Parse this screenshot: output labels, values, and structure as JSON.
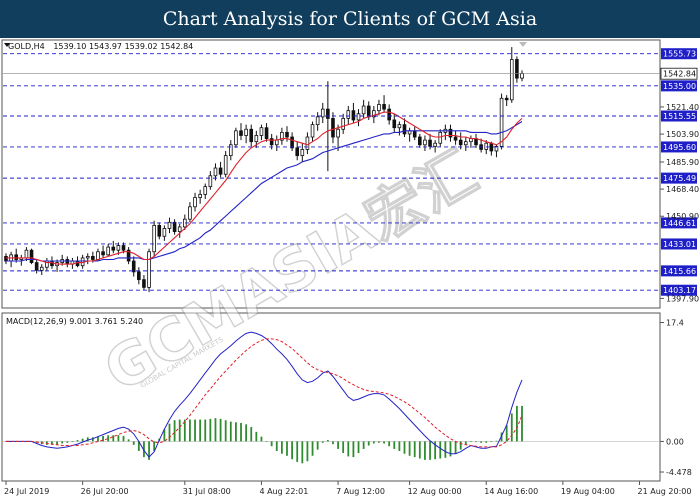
{
  "title": "Chart Analysis for Clients of GCM Asia",
  "watermark": {
    "main": "GCMASIA宏汇",
    "sub": "GLOBAL CAPITAL MARKETS"
  },
  "colors": {
    "title_bg": "#123e5e",
    "candle_bull": "#111111",
    "candle_bear": "#111111",
    "ma_fast": "#e0202a",
    "ma_slow": "#2323c8",
    "level_line": "#1f1fc8",
    "level_tag": "#1f1fc8",
    "macd_line": "#2323c8",
    "signal_line": "#e0202a",
    "histogram": "#2e8b2e"
  },
  "chart_data": [
    {
      "type": "line",
      "panel": "price",
      "symbol_label": "GOLD,H4",
      "ohlc_label": "1539.10 1543.97 1539.02 1542.84",
      "ylim": [
        1393,
        1562
      ],
      "y_tick_labels": [
        "1521.40",
        "1503.90",
        "1485.90",
        "1468.40",
        "1450.90",
        "1397.90"
      ],
      "y_ticks": [
        1521.4,
        1503.9,
        1485.9,
        1468.4,
        1450.9,
        1397.9
      ],
      "current_price": 1542.84,
      "current_price_label": "1542.84",
      "levels": [
        1555.73,
        1535.0,
        1515.55,
        1495.6,
        1475.49,
        1446.61,
        1433.01,
        1415.66,
        1403.17
      ],
      "level_labels": [
        "1555.73",
        "1535.00",
        "1515.55",
        "1495.60",
        "1475.49",
        "1446.61",
        "1433.01",
        "1415.66",
        "1403.17"
      ],
      "x_labels": [
        "24 Jul 2019",
        "26 Jul 20:00",
        "31 Jul 08:00",
        "4 Aug 22:01",
        "7 Aug 12:00",
        "12 Aug 00:00",
        "14 Aug 16:00",
        "19 Aug 04:00",
        "21 Aug 20:00"
      ],
      "x_label_positions": [
        0,
        15,
        35,
        50,
        65,
        79,
        94,
        109,
        124
      ],
      "candles": [
        [
          1425,
          1427,
          1420,
          1422
        ],
        [
          1422,
          1428,
          1418,
          1426
        ],
        [
          1426,
          1430,
          1421,
          1423
        ],
        [
          1423,
          1426,
          1419,
          1424
        ],
        [
          1424,
          1431,
          1422,
          1429
        ],
        [
          1429,
          1430,
          1420,
          1421
        ],
        [
          1421,
          1423,
          1414,
          1416
        ],
        [
          1416,
          1420,
          1413,
          1418
        ],
        [
          1418,
          1424,
          1416,
          1422
        ],
        [
          1422,
          1425,
          1417,
          1419
        ],
        [
          1419,
          1423,
          1415,
          1421
        ],
        [
          1421,
          1426,
          1419,
          1423
        ],
        [
          1423,
          1425,
          1418,
          1420
        ],
        [
          1420,
          1424,
          1417,
          1422
        ],
        [
          1422,
          1425,
          1418,
          1419
        ],
        [
          1419,
          1426,
          1417,
          1424
        ],
        [
          1424,
          1427,
          1420,
          1425
        ],
        [
          1425,
          1428,
          1421,
          1423
        ],
        [
          1423,
          1430,
          1422,
          1428
        ],
        [
          1428,
          1432,
          1424,
          1426
        ],
        [
          1426,
          1433,
          1425,
          1431
        ],
        [
          1431,
          1435,
          1427,
          1429
        ],
        [
          1429,
          1434,
          1426,
          1432
        ],
        [
          1432,
          1434,
          1427,
          1429
        ],
        [
          1429,
          1431,
          1420,
          1422
        ],
        [
          1422,
          1425,
          1412,
          1415
        ],
        [
          1415,
          1418,
          1407,
          1410
        ],
        [
          1410,
          1413,
          1403,
          1405
        ],
        [
          1405,
          1430,
          1402,
          1428
        ],
        [
          1428,
          1448,
          1425,
          1445
        ],
        [
          1445,
          1447,
          1436,
          1438
        ],
        [
          1438,
          1445,
          1435,
          1443
        ],
        [
          1443,
          1450,
          1440,
          1447
        ],
        [
          1447,
          1449,
          1439,
          1441
        ],
        [
          1441,
          1446,
          1437,
          1444
        ],
        [
          1444,
          1452,
          1442,
          1449
        ],
        [
          1449,
          1460,
          1447,
          1457
        ],
        [
          1457,
          1466,
          1454,
          1463
        ],
        [
          1463,
          1468,
          1459,
          1465
        ],
        [
          1465,
          1472,
          1462,
          1470
        ],
        [
          1470,
          1480,
          1468,
          1477
        ],
        [
          1477,
          1485,
          1474,
          1482
        ],
        [
          1482,
          1486,
          1476,
          1478
        ],
        [
          1478,
          1493,
          1476,
          1490
        ],
        [
          1490,
          1500,
          1487,
          1497
        ],
        [
          1497,
          1508,
          1495,
          1506
        ],
        [
          1506,
          1511,
          1500,
          1503
        ],
        [
          1503,
          1510,
          1498,
          1507
        ],
        [
          1507,
          1510,
          1496,
          1499
        ],
        [
          1499,
          1506,
          1495,
          1503
        ],
        [
          1503,
          1510,
          1500,
          1508
        ],
        [
          1508,
          1511,
          1499,
          1501
        ],
        [
          1501,
          1504,
          1494,
          1497
        ],
        [
          1497,
          1503,
          1493,
          1500
        ],
        [
          1500,
          1508,
          1497,
          1505
        ],
        [
          1505,
          1509,
          1499,
          1502
        ],
        [
          1502,
          1505,
          1493,
          1495
        ],
        [
          1495,
          1499,
          1487,
          1490
        ],
        [
          1490,
          1498,
          1486,
          1494
        ],
        [
          1494,
          1505,
          1491,
          1502
        ],
        [
          1502,
          1512,
          1499,
          1510
        ],
        [
          1510,
          1518,
          1506,
          1515
        ],
        [
          1515,
          1524,
          1511,
          1520
        ],
        [
          1520,
          1538,
          1480,
          1514
        ],
        [
          1514,
          1518,
          1498,
          1502
        ],
        [
          1502,
          1510,
          1493,
          1507
        ],
        [
          1507,
          1517,
          1504,
          1514
        ],
        [
          1514,
          1522,
          1510,
          1519
        ],
        [
          1519,
          1524,
          1511,
          1513
        ],
        [
          1513,
          1520,
          1509,
          1517
        ],
        [
          1517,
          1526,
          1514,
          1522
        ],
        [
          1522,
          1525,
          1513,
          1515
        ],
        [
          1515,
          1522,
          1511,
          1519
        ],
        [
          1519,
          1526,
          1516,
          1523
        ],
        [
          1523,
          1529,
          1518,
          1520
        ],
        [
          1520,
          1523,
          1510,
          1513
        ],
        [
          1513,
          1517,
          1505,
          1508
        ],
        [
          1508,
          1512,
          1503,
          1510
        ],
        [
          1510,
          1514,
          1502,
          1504
        ],
        [
          1504,
          1508,
          1499,
          1506
        ],
        [
          1506,
          1509,
          1500,
          1502
        ],
        [
          1502,
          1504,
          1495,
          1497
        ],
        [
          1497,
          1503,
          1493,
          1500
        ],
        [
          1500,
          1504,
          1494,
          1496
        ],
        [
          1496,
          1500,
          1492,
          1498
        ],
        [
          1498,
          1507,
          1496,
          1505
        ],
        [
          1505,
          1510,
          1500,
          1507
        ],
        [
          1507,
          1510,
          1499,
          1502
        ],
        [
          1502,
          1506,
          1497,
          1500
        ],
        [
          1500,
          1505,
          1494,
          1497
        ],
        [
          1497,
          1502,
          1493,
          1499
        ],
        [
          1499,
          1503,
          1495,
          1501
        ],
        [
          1501,
          1504,
          1495,
          1497
        ],
        [
          1497,
          1501,
          1492,
          1494
        ],
        [
          1494,
          1500,
          1491,
          1498
        ],
        [
          1498,
          1499,
          1490,
          1493
        ],
        [
          1493,
          1497,
          1489,
          1496
        ],
        [
          1496,
          1530,
          1494,
          1527
        ],
        [
          1527,
          1529,
          1522,
          1526
        ],
        [
          1526,
          1560,
          1524,
          1552
        ],
        [
          1552,
          1554,
          1537,
          1540
        ],
        [
          1540,
          1545,
          1538,
          1543
        ]
      ],
      "ma_fast": [
        1424,
        1424,
        1424,
        1424,
        1424,
        1424,
        1423,
        1422,
        1421,
        1421,
        1420,
        1420,
        1420,
        1420,
        1421,
        1421,
        1422,
        1422,
        1423,
        1424,
        1425,
        1426,
        1427,
        1428,
        1428,
        1427,
        1425,
        1423,
        1423,
        1425,
        1428,
        1431,
        1434,
        1437,
        1440,
        1443,
        1446,
        1450,
        1454,
        1458,
        1462,
        1466,
        1470,
        1474,
        1479,
        1484,
        1488,
        1492,
        1495,
        1497,
        1499,
        1500,
        1500,
        1500,
        1501,
        1501,
        1500,
        1499,
        1498,
        1497,
        1499,
        1501,
        1504,
        1506,
        1507,
        1508,
        1509,
        1510,
        1511,
        1512,
        1514,
        1515,
        1516,
        1517,
        1518,
        1518,
        1517,
        1515,
        1513,
        1511,
        1509,
        1507,
        1505,
        1503,
        1502,
        1502,
        1503,
        1503,
        1503,
        1502,
        1502,
        1501,
        1501,
        1500,
        1499,
        1498,
        1497,
        1499,
        1502,
        1507,
        1511,
        1514
      ],
      "ma_slow": [
        1422,
        1422,
        1422,
        1422,
        1423,
        1423,
        1423,
        1422,
        1422,
        1422,
        1422,
        1422,
        1422,
        1422,
        1422,
        1422,
        1422,
        1422,
        1422,
        1423,
        1423,
        1423,
        1424,
        1424,
        1424,
        1424,
        1424,
        1423,
        1423,
        1424,
        1425,
        1426,
        1427,
        1428,
        1430,
        1431,
        1433,
        1435,
        1437,
        1440,
        1442,
        1445,
        1448,
        1451,
        1454,
        1457,
        1460,
        1463,
        1466,
        1469,
        1472,
        1474,
        1476,
        1478,
        1480,
        1482,
        1483,
        1484,
        1486,
        1487,
        1488,
        1490,
        1492,
        1493,
        1494,
        1495,
        1496,
        1497,
        1498,
        1499,
        1500,
        1501,
        1502,
        1503,
        1504,
        1504,
        1505,
        1505,
        1506,
        1506,
        1506,
        1506,
        1506,
        1506,
        1506,
        1506,
        1506,
        1506,
        1506,
        1506,
        1506,
        1505,
        1505,
        1505,
        1505,
        1504,
        1504,
        1505,
        1506,
        1508,
        1510,
        1512
      ]
    },
    {
      "type": "line",
      "panel": "indicator",
      "label": "MACD(12,26,9) 9.001 3.761 5.240",
      "ylim": [
        -5.5,
        18.5
      ],
      "y_tick_labels": [
        "17.4",
        "0.00",
        "-4.478"
      ],
      "y_ticks": [
        17.4,
        0,
        -4.478
      ],
      "macd": [
        0.0,
        0.0,
        0.0,
        0.0,
        0.0,
        0.0,
        -0.3,
        -0.6,
        -0.8,
        -0.9,
        -1.0,
        -0.9,
        -0.8,
        -0.6,
        -0.4,
        -0.1,
        0.2,
        0.4,
        0.7,
        1.0,
        1.3,
        1.6,
        1.9,
        2.1,
        1.8,
        1.1,
        0.0,
        -1.3,
        -2.3,
        -1.5,
        0.2,
        1.8,
        3.2,
        4.4,
        5.3,
        6.1,
        7.0,
        8.0,
        9.0,
        10.0,
        11.0,
        12.0,
        12.8,
        13.4,
        14.0,
        14.7,
        15.3,
        15.8,
        16.0,
        15.8,
        15.5,
        15.0,
        14.3,
        13.5,
        12.8,
        12.0,
        11.0,
        9.9,
        9.0,
        8.6,
        8.8,
        9.3,
        10.0,
        10.3,
        9.5,
        8.5,
        7.5,
        6.5,
        6.0,
        6.2,
        6.5,
        6.8,
        7.0,
        7.0,
        6.8,
        6.2,
        5.5,
        4.8,
        4.0,
        3.2,
        2.4,
        1.6,
        0.8,
        0.1,
        -0.5,
        -1.0,
        -1.5,
        -1.8,
        -1.8,
        -1.5,
        -1.0,
        -0.6,
        -0.8,
        -1.0,
        -1.0,
        -0.8,
        -0.7,
        0.8,
        2.4,
        5.0,
        7.2,
        9.0
      ],
      "signal": [
        0.0,
        0.0,
        0.0,
        0.0,
        0.0,
        0.0,
        -0.1,
        -0.2,
        -0.3,
        -0.4,
        -0.5,
        -0.6,
        -0.6,
        -0.6,
        -0.6,
        -0.5,
        -0.4,
        -0.2,
        0.0,
        0.2,
        0.4,
        0.7,
        1.0,
        1.3,
        1.5,
        1.6,
        1.4,
        1.0,
        0.4,
        -0.1,
        -0.2,
        0.0,
        0.6,
        1.3,
        2.1,
        2.9,
        3.8,
        4.8,
        5.8,
        6.8,
        7.7,
        8.6,
        9.5,
        10.3,
        11.1,
        11.9,
        12.6,
        13.3,
        13.9,
        14.4,
        14.8,
        15.0,
        15.0,
        14.9,
        14.6,
        14.1,
        13.6,
        12.9,
        12.2,
        11.5,
        10.9,
        10.5,
        10.2,
        10.1,
        9.9,
        9.6,
        9.2,
        8.7,
        8.3,
        7.9,
        7.6,
        7.4,
        7.3,
        7.2,
        7.1,
        6.9,
        6.6,
        6.2,
        5.8,
        5.3,
        4.7,
        4.1,
        3.5,
        2.8,
        2.1,
        1.5,
        0.9,
        0.4,
        0.0,
        -0.3,
        -0.5,
        -0.6,
        -0.7,
        -0.8,
        -0.8,
        -0.8,
        -0.8,
        -0.5,
        0.0,
        0.9,
        2.0,
        3.8
      ]
    }
  ]
}
